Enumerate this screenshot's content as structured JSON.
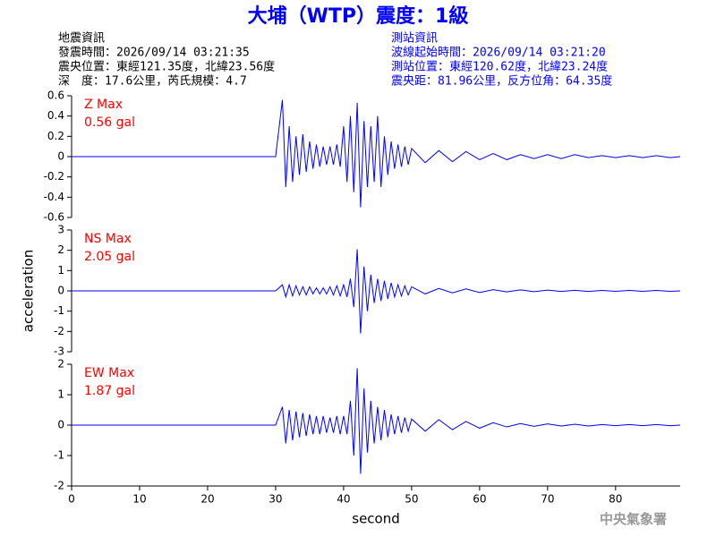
{
  "header": {
    "title": "大埔（WTP）震度：1級",
    "left_info": [
      "地震資訊",
      "發震時間：2026/09/14 03:21:35",
      "震央位置：東經121.35度，北緯23.56度",
      "深　度：17.6公里，芮氏規模：4.7"
    ],
    "right_info": [
      "測站資訊",
      "波線起始時間：2026/09/14 03:21:20",
      "測站位置：東經120.62度，北緯23.24度",
      "震央距：81.96公里，反方位角：64.35度"
    ],
    "footer": "中央氣象署"
  },
  "chart_data": [
    {
      "type": "line",
      "label": "Z Max",
      "max_label": "0.56 gal",
      "color": "#0000ff",
      "xlim": [
        0,
        89.5
      ],
      "ylim": [
        -0.6,
        0.6
      ],
      "yticks": [
        -0.6,
        -0.4,
        -0.2,
        0,
        0.2,
        0.4,
        0.6
      ],
      "x": [
        0,
        10,
        20,
        30,
        31,
        31.5,
        32,
        32.5,
        33,
        33.5,
        34,
        34.5,
        35,
        35.5,
        36,
        36.5,
        37,
        37.5,
        38,
        38.5,
        39,
        39.5,
        40,
        40.5,
        41,
        41.5,
        42,
        42.5,
        43,
        43.5,
        44,
        44.5,
        45,
        45.5,
        46,
        46.5,
        47,
        47.5,
        48,
        48.5,
        49,
        49.5,
        50,
        52,
        54,
        56,
        58,
        60,
        62,
        64,
        66,
        68,
        70,
        72,
        74,
        76,
        78,
        80,
        82,
        84,
        86,
        88,
        89.5
      ],
      "values": [
        0,
        0,
        0,
        0,
        0.56,
        -0.3,
        0.3,
        -0.25,
        0.2,
        -0.18,
        0.22,
        -0.15,
        0.15,
        -0.12,
        0.12,
        -0.1,
        0.1,
        -0.08,
        0.1,
        -0.08,
        0.12,
        -0.1,
        0.3,
        -0.25,
        0.4,
        -0.35,
        0.53,
        -0.5,
        0.35,
        -0.3,
        0.3,
        -0.25,
        0.4,
        -0.3,
        0.2,
        -0.18,
        0.15,
        -0.12,
        0.12,
        -0.1,
        0.1,
        -0.08,
        0.08,
        -0.06,
        0.06,
        -0.05,
        0.05,
        -0.03,
        0.03,
        -0.03,
        0.02,
        -0.02,
        0.02,
        -0.02,
        0.02,
        -0.01,
        0.01,
        -0.01,
        0.01,
        -0.01,
        0.01,
        -0.01,
        0
      ]
    },
    {
      "type": "line",
      "label": "NS Max",
      "max_label": "2.05 gal",
      "color": "#0000ff",
      "ylabel": "acceleration",
      "xlim": [
        0,
        89.5
      ],
      "ylim": [
        -3,
        3
      ],
      "yticks": [
        -3,
        -2,
        -1,
        0,
        1,
        2,
        3
      ],
      "x": [
        0,
        10,
        20,
        30,
        31,
        31.5,
        32,
        32.5,
        33,
        33.5,
        34,
        34.5,
        35,
        35.5,
        36,
        36.5,
        37,
        37.5,
        38,
        38.5,
        39,
        39.5,
        40,
        40.5,
        41,
        41.5,
        42,
        42.5,
        43,
        43.5,
        44,
        44.5,
        45,
        45.5,
        46,
        46.5,
        47,
        47.5,
        48,
        48.5,
        49,
        49.5,
        50,
        52,
        54,
        56,
        58,
        60,
        62,
        64,
        66,
        68,
        70,
        72,
        74,
        76,
        78,
        80,
        82,
        84,
        86,
        88,
        89.5
      ],
      "values": [
        0,
        0,
        0,
        0,
        0.3,
        -0.3,
        0.3,
        -0.25,
        0.25,
        -0.2,
        0.2,
        -0.2,
        0.2,
        -0.15,
        0.15,
        -0.15,
        0.15,
        -0.15,
        0.2,
        -0.2,
        0.25,
        -0.25,
        0.3,
        -0.3,
        0.6,
        -0.8,
        2.05,
        -2.1,
        1.2,
        -1,
        0.8,
        -0.6,
        0.6,
        -0.5,
        0.5,
        -0.4,
        0.4,
        -0.3,
        0.3,
        -0.25,
        0.25,
        -0.2,
        0.2,
        -0.15,
        0.12,
        -0.1,
        0.1,
        -0.08,
        0.06,
        -0.05,
        0.05,
        -0.04,
        0.04,
        -0.03,
        0.03,
        -0.03,
        0.02,
        -0.02,
        0.02,
        -0.02,
        0.02,
        -0.02,
        0
      ]
    },
    {
      "type": "line",
      "label": "EW Max",
      "max_label": "1.87 gal",
      "color": "#0000ff",
      "xlabel": "second",
      "xlim": [
        0,
        89.5
      ],
      "xticks": [
        0,
        10,
        20,
        30,
        40,
        50,
        60,
        70,
        80
      ],
      "ylim": [
        -2,
        2
      ],
      "yticks": [
        -2,
        -1,
        0,
        1,
        2
      ],
      "x": [
        0,
        10,
        20,
        30,
        31,
        31.5,
        32,
        32.5,
        33,
        33.5,
        34,
        34.5,
        35,
        35.5,
        36,
        36.5,
        37,
        37.5,
        38,
        38.5,
        39,
        39.5,
        40,
        40.5,
        41,
        41.5,
        42,
        42.5,
        43,
        43.5,
        44,
        44.5,
        45,
        45.5,
        46,
        46.5,
        47,
        47.5,
        48,
        48.5,
        49,
        49.5,
        50,
        52,
        54,
        56,
        58,
        60,
        62,
        64,
        66,
        68,
        70,
        72,
        74,
        76,
        78,
        80,
        82,
        84,
        86,
        88,
        89.5
      ],
      "values": [
        0,
        0,
        0,
        0,
        0.6,
        -0.6,
        0.5,
        -0.5,
        0.45,
        -0.4,
        0.4,
        -0.35,
        0.35,
        -0.3,
        0.3,
        -0.3,
        0.3,
        -0.25,
        0.25,
        -0.25,
        0.3,
        -0.3,
        0.3,
        -0.3,
        0.8,
        -1,
        1.87,
        -1.6,
        1.2,
        -0.9,
        0.8,
        -0.6,
        0.6,
        -0.5,
        0.5,
        -0.4,
        0.35,
        -0.3,
        0.3,
        -0.25,
        0.25,
        -0.2,
        0.2,
        -0.2,
        0.18,
        -0.15,
        0.12,
        -0.1,
        0.08,
        -0.06,
        0.05,
        -0.04,
        0.04,
        -0.03,
        0.03,
        -0.03,
        0.02,
        -0.02,
        0.02,
        -0.02,
        0.02,
        -0.02,
        0
      ]
    }
  ]
}
